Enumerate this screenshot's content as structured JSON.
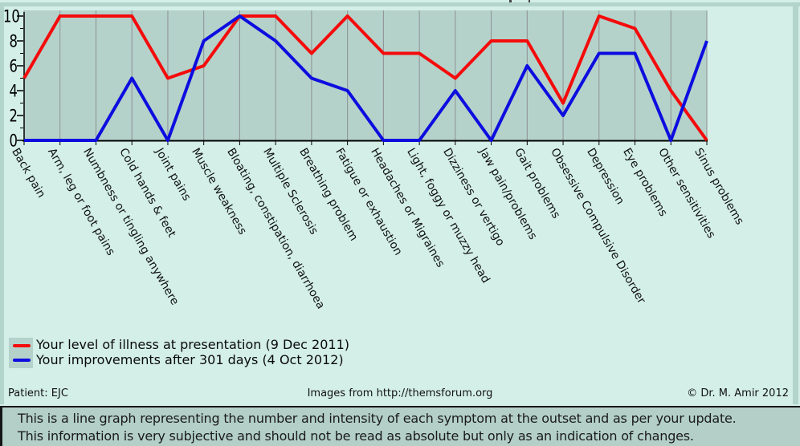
{
  "chart_data": {
    "type": "line",
    "categories": [
      "Back pain",
      "Arm, leg or foot pains",
      "Numbness or tingling anywhere",
      "Cold hands & feet",
      "Joint pains",
      "Muscle weakness",
      "Bloating, constipation, diarrhoea",
      "Multiple Sclerosis",
      "Breathing problem",
      "Fatigue or exhaustion",
      "Headaches or Migraines",
      "Light, foggy or muzzy head",
      "Dizziness or vertigo",
      "Jaw pain/problems",
      "Gait problems",
      "Obsessive Compulsive Disorder",
      "Depression",
      "Eye problems",
      "Other sensitivities",
      "Sinus problems"
    ],
    "series": [
      {
        "name": "Your level of illness at presentation (9 Dec 2011)",
        "color": "#f40b0b",
        "values": [
          5,
          10,
          10,
          10,
          5,
          6,
          10,
          10,
          7,
          10,
          7,
          7,
          5,
          8,
          8,
          3,
          10,
          9,
          4,
          0
        ]
      },
      {
        "name": "Your improvements after 301 days (4 Oct 2012)",
        "color": "#0d0ddf",
        "values": [
          0,
          0,
          0,
          5,
          0,
          8,
          10,
          8,
          5,
          4,
          0,
          0,
          4,
          0,
          6,
          2,
          7,
          7,
          0,
          8
        ]
      }
    ],
    "title": "",
    "xlabel": "",
    "ylabel": "",
    "ylim": [
      0,
      10
    ],
    "yticks": [
      0,
      2,
      4,
      6,
      8,
      10
    ],
    "grid": "vertical-gridlines-on",
    "legend_position": "bottom-left"
  },
  "colors": {
    "page_bg": "#d3efe7",
    "plot_bg": "#b4d2ca",
    "gridline": "#8f9093",
    "axis": "#000000",
    "border_band": "#b2d4cb",
    "note_panel_bg": "#b3cfc8",
    "series_red": "#f40b0b",
    "series_blue": "#0d0ddf"
  },
  "footer": {
    "patient": "Patient: EJC",
    "source": "Images from http://themsforum.org",
    "copyright": "© Dr. M. Amir 2012"
  },
  "note": {
    "line1": "This is a line graph representing the number and intensity of each symptom at the outset and as per your update.",
    "line2": "This information is very subjective and should not be read as absolute but only as an indication of changes."
  }
}
